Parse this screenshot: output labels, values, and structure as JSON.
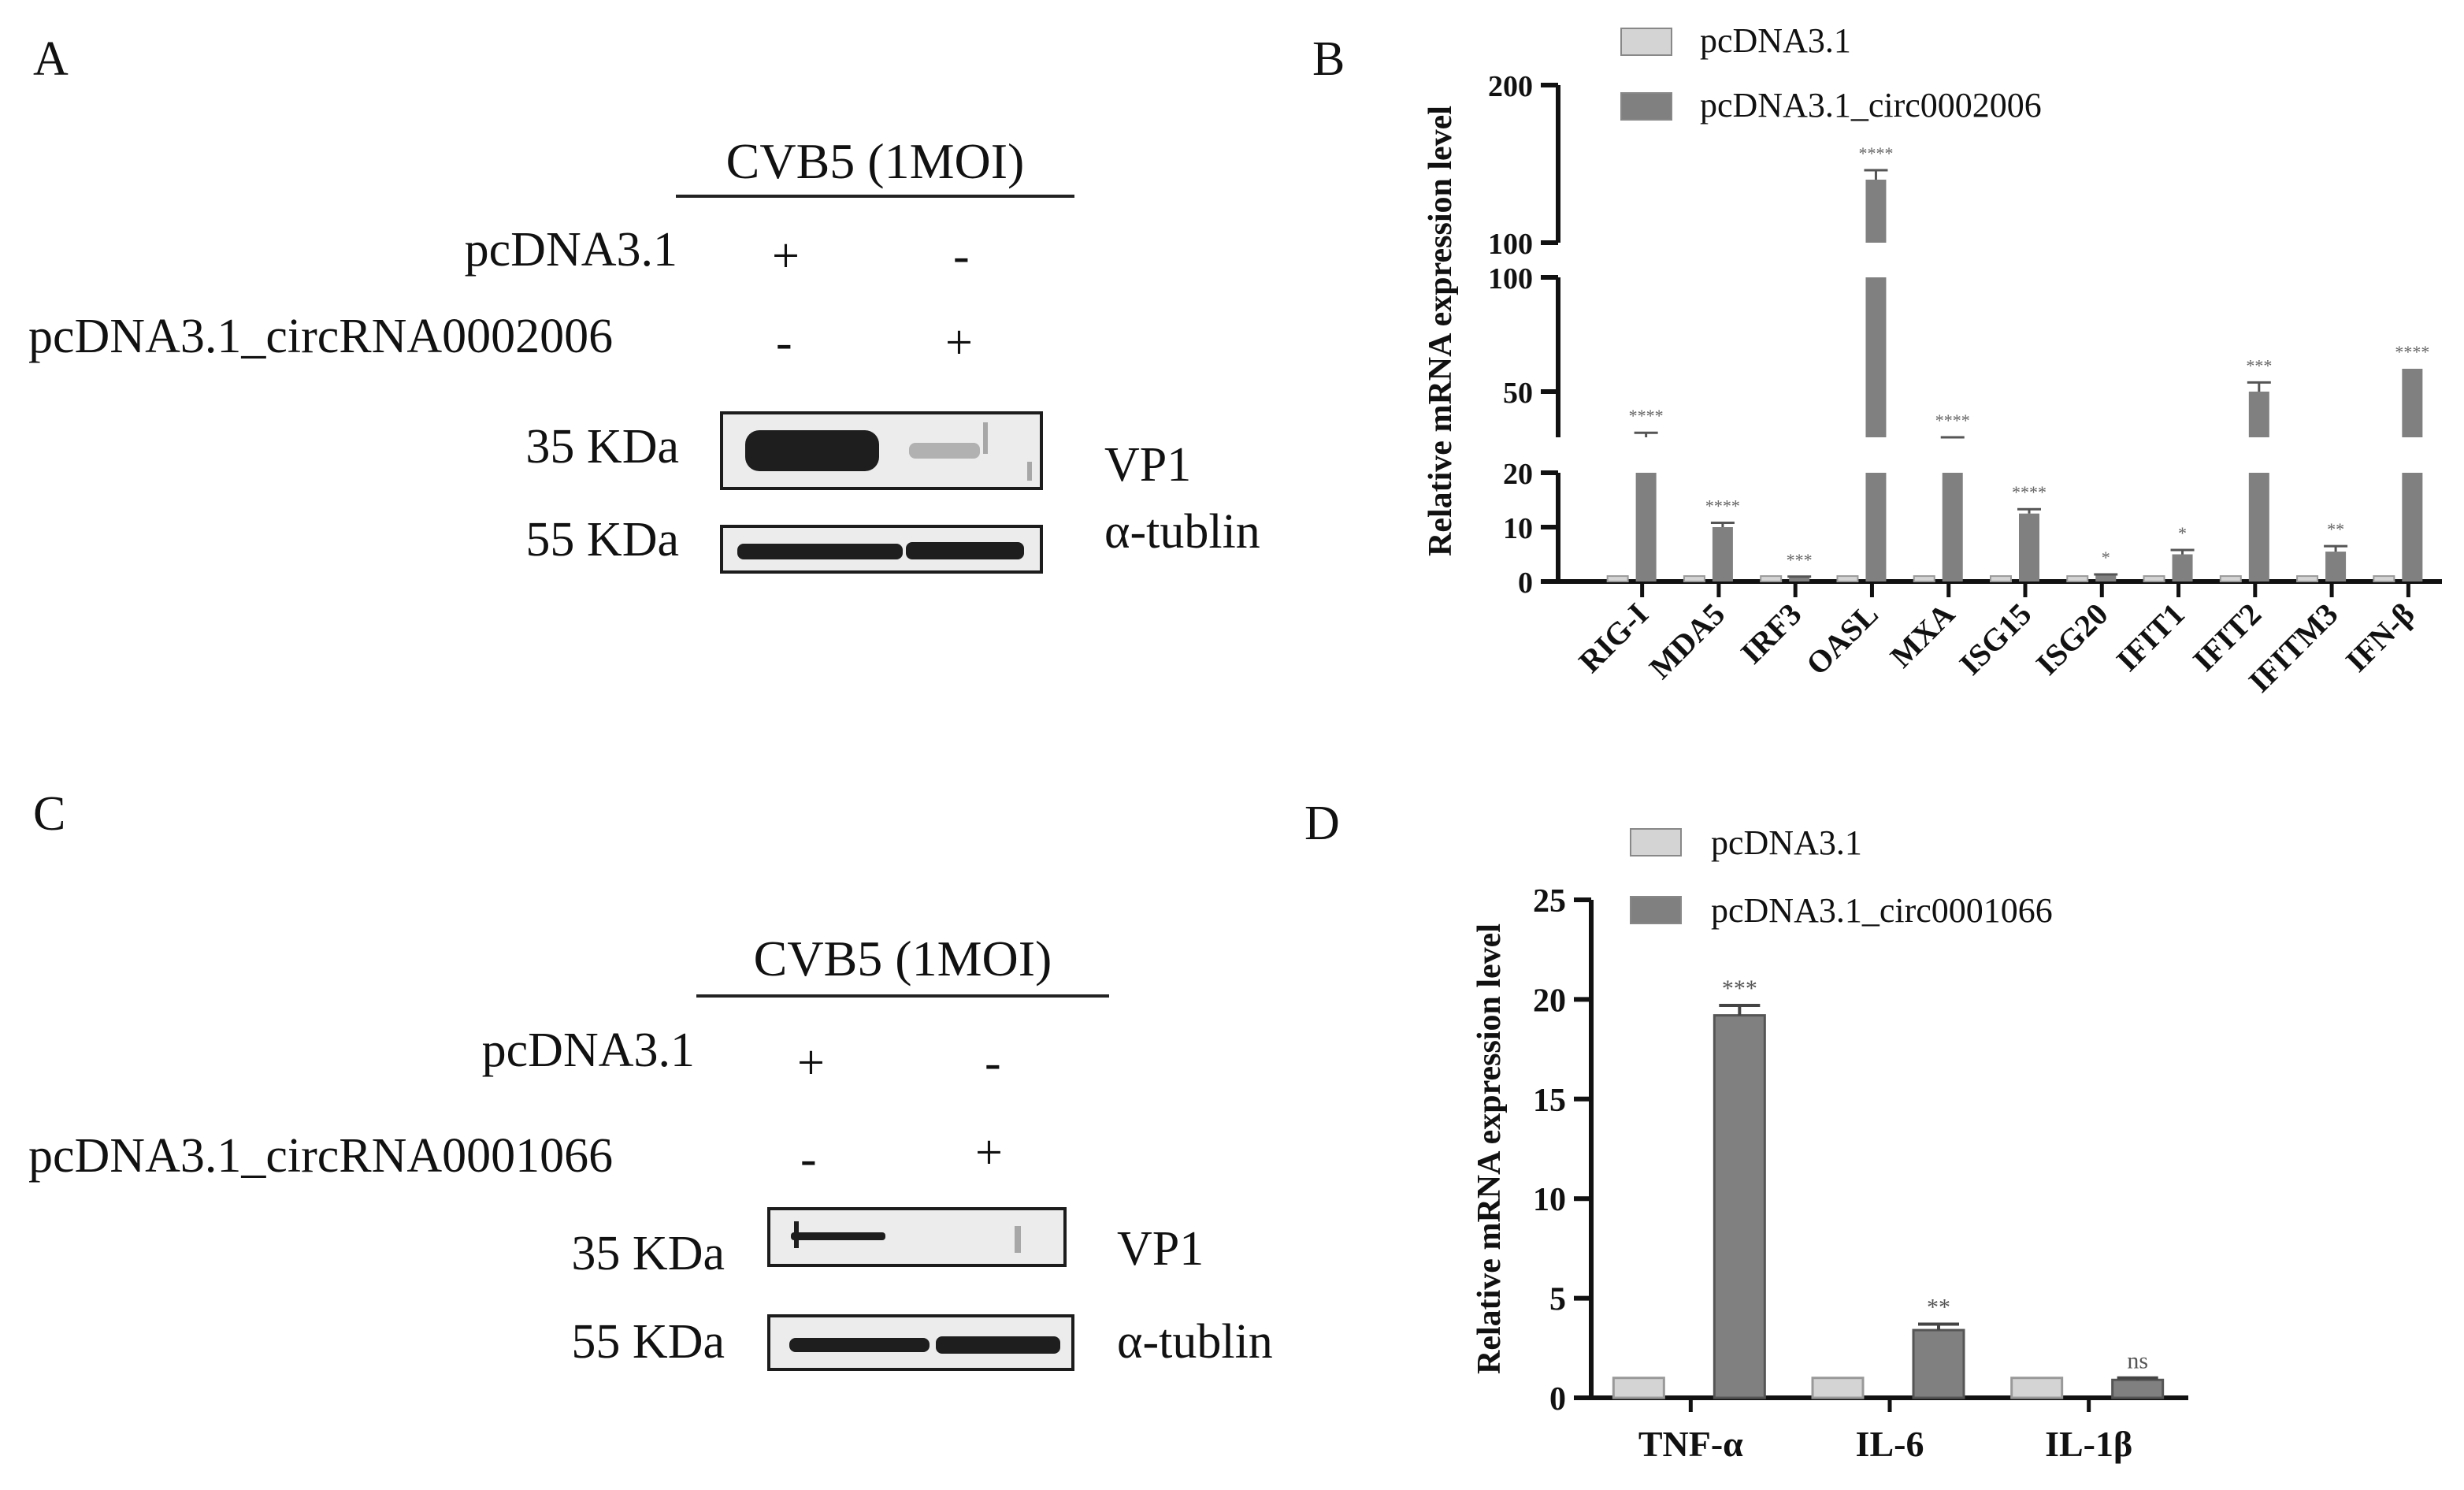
{
  "panels": {
    "A": {
      "letter": "A",
      "condition": "CVB5 (1MOI)",
      "row1_label": "pcDNA3.1",
      "row1_signs": [
        "+",
        "-"
      ],
      "row2_label": "pcDNA3.1_circRNA0002006",
      "row2_signs": [
        "-",
        "+"
      ],
      "blot1_size": "35 KDa",
      "blot1_protein": "VP1",
      "blot2_size": "55 KDa",
      "blot2_protein": "α-tublin"
    },
    "C": {
      "letter": "C",
      "condition": "CVB5 (1MOI)",
      "row1_label": "pcDNA3.1",
      "row1_signs": [
        "+",
        "-"
      ],
      "row2_label": "pcDNA3.1_circRNA0001066",
      "row2_signs": [
        "-",
        "+"
      ],
      "blot1_size": "35 KDa",
      "blot1_protein": "VP1",
      "blot2_size": "55 KDa",
      "blot2_protein": "α-tublin"
    },
    "B": {
      "letter": "B"
    },
    "D": {
      "letter": "D"
    }
  },
  "colors": {
    "control": "#d4d4d4",
    "treated": "#808080",
    "axis": "#111111"
  },
  "chart_data": [
    {
      "id": "B",
      "type": "bar",
      "ylabel": "Relative mRNA expression level",
      "categories": [
        "RIG-I",
        "MDA5",
        "IRF3",
        "OASL",
        "MXA",
        "ISG15",
        "ISG20",
        "IFIT1",
        "IFIT2",
        "IFITM3",
        "IFN-β"
      ],
      "series": [
        {
          "name": "pcDNA3.1",
          "values": [
            1,
            1,
            1,
            1,
            1,
            1,
            1,
            1,
            1,
            1,
            1
          ],
          "errors": [
            0,
            0,
            0,
            0,
            0,
            0,
            0,
            0,
            0,
            0,
            0
          ]
        },
        {
          "name": "pcDNA3.1_circ0002006",
          "values": [
            30,
            10,
            0.8,
            140,
            28,
            12.5,
            1.2,
            5,
            50,
            5.5,
            60
          ],
          "errors": [
            2,
            0.8,
            0.1,
            6,
            2,
            0.8,
            0.1,
            0.8,
            4,
            1,
            0
          ]
        }
      ],
      "significance": [
        "****",
        "****",
        "***",
        "****",
        "****",
        "****",
        "*",
        "*",
        "***",
        "**",
        "****"
      ],
      "axis_segments": [
        {
          "range": [
            0,
            20
          ],
          "ticks": [
            0,
            10,
            20
          ]
        },
        {
          "range": [
            30,
            100
          ],
          "ticks": [
            50,
            100
          ]
        },
        {
          "range": [
            100,
            200
          ],
          "ticks": [
            100,
            200
          ]
        }
      ]
    },
    {
      "id": "D",
      "type": "bar",
      "ylabel": "Relative mRNA expression level",
      "categories": [
        "TNF-α",
        "IL-6",
        "IL-1β"
      ],
      "series": [
        {
          "name": "pcDNA3.1",
          "values": [
            1,
            1,
            1
          ],
          "errors": [
            0.05,
            0.03,
            0.03
          ]
        },
        {
          "name": "pcDNA3.1_circ0001066",
          "values": [
            19.2,
            3.4,
            0.9
          ],
          "errors": [
            0.5,
            0.3,
            0.1
          ]
        }
      ],
      "significance": [
        "***",
        "**",
        "ns"
      ],
      "ylim": [
        0,
        25
      ],
      "yticks": [
        0,
        5,
        10,
        15,
        20,
        25
      ]
    }
  ]
}
